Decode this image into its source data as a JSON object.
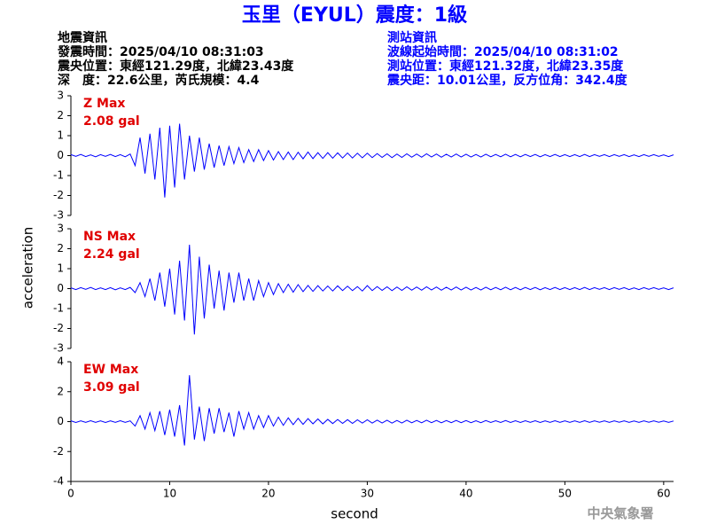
{
  "header": {
    "title": "玉里（EYUL）震度：1級",
    "event": [
      "地震資訊",
      "發震時間：2025/04/10 08:31:03",
      "震央位置：東經121.29度，北緯23.43度",
      "深　度：22.6公里，芮氏規模：4.4"
    ],
    "station": [
      "測站資訊",
      "波線起始時間：2025/04/10 08:31:02",
      "測站位置：東經121.32度，北緯23.35度",
      "震央距：10.01公里，反方位角：342.4度"
    ],
    "ylabel": "acceleration",
    "xlabel": "second",
    "watermark": "中央氣象署"
  },
  "chart_data": [
    {
      "type": "line",
      "label": "Z Max",
      "max_label": "2.08 gal",
      "color": "#0000ff",
      "label_color": "#e00000",
      "xlim": [
        0,
        61
      ],
      "ylim": [
        -3,
        3
      ],
      "yticks": [
        -3,
        -2,
        -1,
        0,
        1,
        2,
        3
      ],
      "x": [
        0,
        0.5,
        1,
        1.5,
        2,
        2.5,
        3,
        3.5,
        4,
        4.5,
        5,
        5.5,
        6,
        6.5,
        7,
        7.5,
        8,
        8.5,
        9,
        9.5,
        10,
        10.5,
        11,
        11.5,
        12,
        12.5,
        13,
        13.5,
        14,
        14.5,
        15,
        15.5,
        16,
        16.5,
        17,
        17.5,
        18,
        18.5,
        19,
        19.5,
        20,
        20.5,
        21,
        21.5,
        22,
        22.5,
        23,
        23.5,
        24,
        24.5,
        25,
        25.5,
        26,
        26.5,
        27,
        27.5,
        28,
        28.5,
        29,
        29.5,
        30,
        30.5,
        31,
        31.5,
        32,
        32.5,
        33,
        33.5,
        34,
        34.5,
        35,
        35.5,
        36,
        36.5,
        37,
        37.5,
        38,
        38.5,
        39,
        39.5,
        40,
        40.5,
        41,
        41.5,
        42,
        42.5,
        43,
        43.5,
        44,
        44.5,
        45,
        45.5,
        46,
        46.5,
        47,
        47.5,
        48,
        48.5,
        49,
        49.5,
        50,
        50.5,
        51,
        51.5,
        52,
        52.5,
        53,
        53.5,
        54,
        54.5,
        55,
        55.5,
        56,
        56.5,
        57,
        57.5,
        58,
        58.5,
        59,
        59.5,
        60,
        60.5,
        61
      ],
      "values": [
        0.05,
        -0.04,
        0.06,
        -0.05,
        0.04,
        -0.06,
        0.05,
        -0.04,
        0.06,
        -0.05,
        0.05,
        -0.06,
        0.08,
        -0.5,
        0.9,
        -0.9,
        1.1,
        -1.2,
        1.4,
        -2.1,
        1.5,
        -1.6,
        1.6,
        -1.2,
        1.0,
        -0.8,
        0.9,
        -0.7,
        0.6,
        -0.6,
        0.5,
        -0.5,
        0.45,
        -0.4,
        0.4,
        -0.35,
        0.3,
        -0.3,
        0.3,
        -0.25,
        0.25,
        -0.22,
        0.2,
        -0.2,
        0.18,
        -0.2,
        0.17,
        -0.16,
        0.18,
        -0.15,
        0.15,
        -0.14,
        0.15,
        -0.13,
        0.14,
        -0.12,
        0.13,
        -0.12,
        0.12,
        -0.11,
        0.12,
        -0.1,
        0.1,
        -0.09,
        0.09,
        -0.1,
        0.08,
        -0.09,
        0.09,
        -0.08,
        0.08,
        -0.08,
        0.09,
        -0.07,
        0.08,
        -0.08,
        0.07,
        -0.07,
        0.08,
        -0.07,
        0.07,
        -0.07,
        0.06,
        -0.07,
        0.07,
        -0.06,
        0.06,
        -0.06,
        0.07,
        -0.06,
        0.06,
        -0.06,
        0.06,
        -0.05,
        0.06,
        -0.06,
        0.05,
        -0.05,
        0.06,
        -0.05,
        0.05,
        -0.05,
        0.05,
        -0.05,
        0.06,
        -0.05,
        0.05,
        -0.04,
        0.05,
        -0.05,
        0.05,
        -0.04,
        0.05,
        -0.05,
        0.04,
        -0.05,
        0.05,
        -0.04,
        0.05,
        -0.04,
        0.04,
        -0.05,
        0.04
      ]
    },
    {
      "type": "line",
      "label": "NS Max",
      "max_label": "2.24 gal",
      "color": "#0000ff",
      "label_color": "#e00000",
      "xlim": [
        0,
        61
      ],
      "ylim": [
        -3,
        3
      ],
      "yticks": [
        -3,
        -2,
        -1,
        0,
        1,
        2,
        3
      ],
      "x": [
        0,
        0.5,
        1,
        1.5,
        2,
        2.5,
        3,
        3.5,
        4,
        4.5,
        5,
        5.5,
        6,
        6.5,
        7,
        7.5,
        8,
        8.5,
        9,
        9.5,
        10,
        10.5,
        11,
        11.5,
        12,
        12.5,
        13,
        13.5,
        14,
        14.5,
        15,
        15.5,
        16,
        16.5,
        17,
        17.5,
        18,
        18.5,
        19,
        19.5,
        20,
        20.5,
        21,
        21.5,
        22,
        22.5,
        23,
        23.5,
        24,
        24.5,
        25,
        25.5,
        26,
        26.5,
        27,
        27.5,
        28,
        28.5,
        29,
        29.5,
        30,
        30.5,
        31,
        31.5,
        32,
        32.5,
        33,
        33.5,
        34,
        34.5,
        35,
        35.5,
        36,
        36.5,
        37,
        37.5,
        38,
        38.5,
        39,
        39.5,
        40,
        40.5,
        41,
        41.5,
        42,
        42.5,
        43,
        43.5,
        44,
        44.5,
        45,
        45.5,
        46,
        46.5,
        47,
        47.5,
        48,
        48.5,
        49,
        49.5,
        50,
        50.5,
        51,
        51.5,
        52,
        52.5,
        53,
        53.5,
        54,
        54.5,
        55,
        55.5,
        56,
        56.5,
        57,
        57.5,
        58,
        58.5,
        59,
        59.5,
        60,
        60.5,
        61
      ],
      "values": [
        0.04,
        -0.05,
        0.05,
        -0.04,
        0.06,
        -0.05,
        0.04,
        -0.05,
        0.05,
        -0.06,
        0.04,
        -0.05,
        0.06,
        -0.2,
        0.3,
        -0.4,
        0.5,
        -0.6,
        0.8,
        -0.9,
        1.0,
        -1.3,
        1.4,
        -1.6,
        2.2,
        -2.3,
        1.6,
        -1.5,
        1.2,
        -1.0,
        0.9,
        -1.1,
        0.8,
        -0.7,
        0.8,
        -0.6,
        0.5,
        -0.6,
        0.4,
        -0.4,
        0.3,
        -0.3,
        0.25,
        -0.2,
        0.22,
        -0.18,
        0.2,
        -0.15,
        0.16,
        -0.14,
        0.15,
        -0.12,
        0.13,
        -0.12,
        0.14,
        -0.1,
        0.12,
        -0.1,
        0.1,
        -0.12,
        0.15,
        -0.1,
        0.1,
        -0.09,
        0.09,
        -0.1,
        0.08,
        -0.09,
        0.09,
        -0.08,
        0.08,
        -0.08,
        0.09,
        -0.07,
        0.08,
        -0.08,
        0.07,
        -0.07,
        0.08,
        -0.07,
        0.07,
        -0.07,
        0.06,
        -0.07,
        0.07,
        -0.06,
        0.06,
        -0.06,
        0.07,
        -0.06,
        0.06,
        -0.06,
        0.06,
        -0.05,
        0.06,
        -0.06,
        0.05,
        -0.05,
        0.06,
        -0.05,
        0.05,
        -0.05,
        0.05,
        -0.05,
        0.06,
        -0.05,
        0.05,
        -0.04,
        0.05,
        -0.05,
        0.05,
        -0.04,
        0.05,
        -0.05,
        0.04,
        -0.05,
        0.05,
        -0.04,
        0.05,
        -0.04,
        0.04,
        -0.05,
        0.04
      ]
    },
    {
      "type": "line",
      "label": "EW Max",
      "max_label": "3.09 gal",
      "color": "#0000ff",
      "label_color": "#e00000",
      "xlim": [
        0,
        61
      ],
      "ylim": [
        -4,
        4
      ],
      "yticks": [
        -4,
        -2,
        0,
        2,
        4
      ],
      "xticks": [
        0,
        10,
        20,
        30,
        40,
        50,
        60
      ],
      "x": [
        0,
        0.5,
        1,
        1.5,
        2,
        2.5,
        3,
        3.5,
        4,
        4.5,
        5,
        5.5,
        6,
        6.5,
        7,
        7.5,
        8,
        8.5,
        9,
        9.5,
        10,
        10.5,
        11,
        11.5,
        12,
        12.5,
        13,
        13.5,
        14,
        14.5,
        15,
        15.5,
        16,
        16.5,
        17,
        17.5,
        18,
        18.5,
        19,
        19.5,
        20,
        20.5,
        21,
        21.5,
        22,
        22.5,
        23,
        23.5,
        24,
        24.5,
        25,
        25.5,
        26,
        26.5,
        27,
        27.5,
        28,
        28.5,
        29,
        29.5,
        30,
        30.5,
        31,
        31.5,
        32,
        32.5,
        33,
        33.5,
        34,
        34.5,
        35,
        35.5,
        36,
        36.5,
        37,
        37.5,
        38,
        38.5,
        39,
        39.5,
        40,
        40.5,
        41,
        41.5,
        42,
        42.5,
        43,
        43.5,
        44,
        44.5,
        45,
        45.5,
        46,
        46.5,
        47,
        47.5,
        48,
        48.5,
        49,
        49.5,
        50,
        50.5,
        51,
        51.5,
        52,
        52.5,
        53,
        53.5,
        54,
        54.5,
        55,
        55.5,
        56,
        56.5,
        57,
        57.5,
        58,
        58.5,
        59,
        59.5,
        60,
        60.5,
        61
      ],
      "values": [
        0.05,
        -0.06,
        0.05,
        -0.05,
        0.06,
        -0.05,
        0.05,
        -0.06,
        0.05,
        -0.05,
        0.06,
        -0.05,
        0.05,
        -0.3,
        0.4,
        -0.5,
        0.6,
        -0.6,
        0.7,
        -0.9,
        0.8,
        -1.0,
        1.1,
        -1.6,
        3.1,
        -1.2,
        1.0,
        -1.3,
        0.9,
        -0.8,
        0.9,
        -0.7,
        0.6,
        -1.0,
        0.7,
        -0.5,
        0.6,
        -0.5,
        0.4,
        -0.4,
        0.4,
        -0.3,
        0.3,
        -0.25,
        0.25,
        -0.2,
        0.22,
        -0.18,
        0.2,
        -0.15,
        0.18,
        -0.15,
        0.15,
        -0.13,
        0.14,
        -0.12,
        0.13,
        -0.12,
        0.12,
        -0.1,
        0.12,
        -0.1,
        0.1,
        -0.09,
        0.09,
        -0.1,
        0.08,
        -0.09,
        0.09,
        -0.08,
        0.08,
        -0.08,
        0.09,
        -0.07,
        0.08,
        -0.08,
        0.07,
        -0.07,
        0.08,
        -0.07,
        0.07,
        -0.07,
        0.06,
        -0.07,
        0.07,
        -0.06,
        0.06,
        -0.06,
        0.07,
        -0.06,
        0.06,
        -0.06,
        0.06,
        -0.05,
        0.06,
        -0.06,
        0.05,
        -0.05,
        0.06,
        -0.05,
        0.05,
        -0.05,
        0.05,
        -0.05,
        0.06,
        -0.05,
        0.05,
        -0.04,
        0.05,
        -0.05,
        0.05,
        -0.04,
        0.05,
        -0.05,
        0.04,
        -0.05,
        0.05,
        -0.04,
        0.05,
        -0.04,
        0.04,
        -0.05,
        0.04
      ]
    }
  ]
}
